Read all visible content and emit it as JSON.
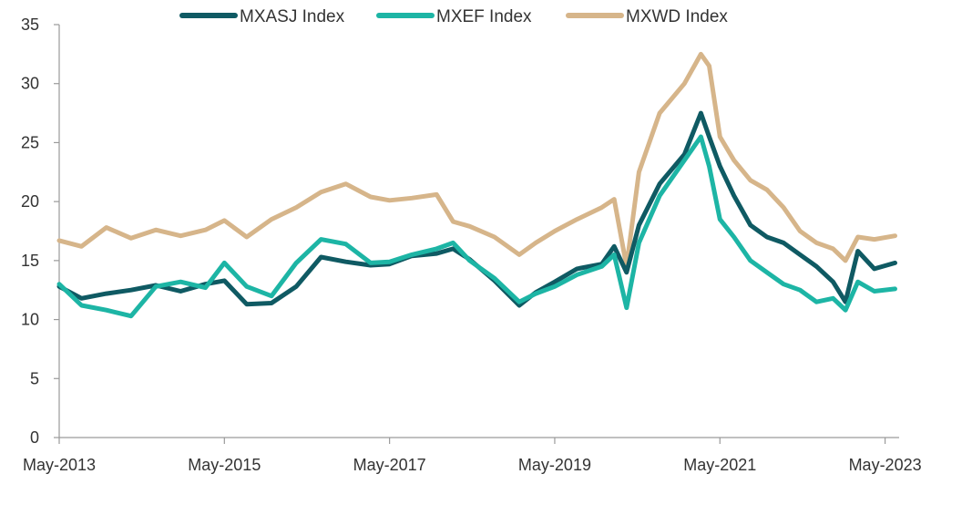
{
  "chart_data": {
    "type": "line",
    "title": "",
    "xlabel": "",
    "ylabel": "",
    "ylim": [
      0,
      35
    ],
    "yticks": [
      0,
      5,
      10,
      15,
      20,
      25,
      30,
      35
    ],
    "xlim": [
      2013.33,
      2023.5
    ],
    "xtick_labels": [
      "May-2013",
      "May-2015",
      "May-2017",
      "May-2019",
      "May-2021",
      "May-2023"
    ],
    "xtick_values": [
      2013.33,
      2015.33,
      2017.33,
      2019.33,
      2021.33,
      2023.33
    ],
    "legend_position": "top",
    "grid": false,
    "series": [
      {
        "name": "MXASJ Index",
        "color": "#0f5a63",
        "x": [
          2013.33,
          2013.6,
          2013.9,
          2014.2,
          2014.5,
          2014.8,
          2015.1,
          2015.33,
          2015.6,
          2015.9,
          2016.2,
          2016.5,
          2016.8,
          2017.1,
          2017.33,
          2017.6,
          2017.9,
          2018.1,
          2018.3,
          2018.6,
          2018.9,
          2019.1,
          2019.33,
          2019.6,
          2019.9,
          2020.05,
          2020.2,
          2020.35,
          2020.6,
          2020.9,
          2021.1,
          2021.2,
          2021.33,
          2021.5,
          2021.7,
          2021.9,
          2022.1,
          2022.3,
          2022.5,
          2022.7,
          2022.85,
          2023.0,
          2023.2,
          2023.45
        ],
        "values": [
          12.8,
          11.8,
          12.2,
          12.5,
          12.9,
          12.4,
          13.0,
          13.3,
          11.3,
          11.4,
          12.8,
          15.3,
          14.9,
          14.6,
          14.7,
          15.4,
          15.6,
          16.0,
          15.1,
          13.3,
          11.2,
          12.3,
          13.2,
          14.3,
          14.7,
          16.2,
          14.0,
          18.0,
          21.5,
          24.0,
          27.5,
          25.5,
          23.0,
          20.5,
          18.0,
          17.0,
          16.5,
          15.5,
          14.5,
          13.2,
          11.5,
          15.8,
          14.3,
          14.8
        ]
      },
      {
        "name": "MXEF Index",
        "color": "#1db5a5",
        "x": [
          2013.33,
          2013.6,
          2013.9,
          2014.2,
          2014.5,
          2014.8,
          2015.1,
          2015.33,
          2015.6,
          2015.9,
          2016.2,
          2016.5,
          2016.8,
          2017.1,
          2017.33,
          2017.6,
          2017.9,
          2018.1,
          2018.3,
          2018.6,
          2018.9,
          2019.1,
          2019.33,
          2019.6,
          2019.9,
          2020.05,
          2020.2,
          2020.35,
          2020.6,
          2020.9,
          2021.1,
          2021.2,
          2021.33,
          2021.5,
          2021.7,
          2021.9,
          2022.1,
          2022.3,
          2022.5,
          2022.7,
          2022.85,
          2023.0,
          2023.2,
          2023.45
        ],
        "values": [
          13.0,
          11.2,
          10.8,
          10.3,
          12.8,
          13.2,
          12.7,
          14.8,
          12.8,
          12.0,
          14.8,
          16.8,
          16.4,
          14.8,
          14.9,
          15.5,
          16.0,
          16.5,
          15.0,
          13.5,
          11.5,
          12.2,
          12.8,
          13.8,
          14.5,
          15.5,
          11.0,
          16.5,
          20.5,
          23.5,
          25.5,
          23.0,
          18.5,
          17.0,
          15.0,
          14.0,
          13.0,
          12.5,
          11.5,
          11.8,
          10.8,
          13.2,
          12.4,
          12.6
        ]
      },
      {
        "name": "MXWD Index",
        "color": "#d6b58a",
        "x": [
          2013.33,
          2013.6,
          2013.9,
          2014.2,
          2014.5,
          2014.8,
          2015.1,
          2015.33,
          2015.6,
          2015.9,
          2016.2,
          2016.5,
          2016.8,
          2017.1,
          2017.33,
          2017.6,
          2017.9,
          2018.1,
          2018.3,
          2018.6,
          2018.9,
          2019.1,
          2019.33,
          2019.6,
          2019.9,
          2020.05,
          2020.2,
          2020.35,
          2020.6,
          2020.9,
          2021.1,
          2021.2,
          2021.33,
          2021.5,
          2021.7,
          2021.9,
          2022.1,
          2022.3,
          2022.5,
          2022.7,
          2022.85,
          2023.0,
          2023.2,
          2023.45
        ],
        "values": [
          16.7,
          16.2,
          17.8,
          16.9,
          17.6,
          17.1,
          17.6,
          18.4,
          17.0,
          18.5,
          19.5,
          20.8,
          21.5,
          20.4,
          20.1,
          20.3,
          20.6,
          18.3,
          17.9,
          17.0,
          15.5,
          16.5,
          17.5,
          18.5,
          19.5,
          20.2,
          14.5,
          22.5,
          27.5,
          30.0,
          32.5,
          31.5,
          25.5,
          23.5,
          21.8,
          21.0,
          19.5,
          17.5,
          16.5,
          16.0,
          15.0,
          17.0,
          16.8,
          17.1
        ]
      }
    ]
  }
}
